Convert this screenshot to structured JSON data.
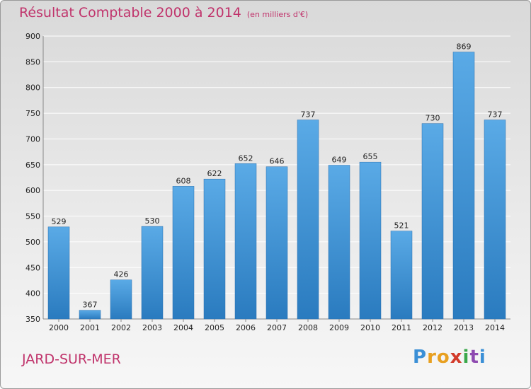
{
  "header": {
    "title": "Résultat Comptable 2000 à 2014",
    "subtitle": "(en milliers d'€)"
  },
  "footer": {
    "commune": "JARD-SUR-MER",
    "brand_letters": [
      "P",
      "r",
      "o",
      "x",
      "i",
      "t",
      "i"
    ],
    "brand_colors": [
      "#3a8fd6",
      "#e8a020",
      "#e8a020",
      "#d23a2a",
      "#3aa84a",
      "#8e4ab0",
      "#3a8fd6"
    ]
  },
  "colors": {
    "bar_top": "#5aaae6",
    "bar_bottom": "#2a7bbf",
    "grid": "#ffffff",
    "axis_text": "#222222",
    "title": "#c0336b"
  },
  "chart_data": {
    "type": "bar",
    "categories": [
      "2000",
      "2001",
      "2002",
      "2003",
      "2004",
      "2005",
      "2006",
      "2007",
      "2008",
      "2009",
      "2010",
      "2011",
      "2012",
      "2013",
      "2014"
    ],
    "values": [
      529,
      367,
      426,
      530,
      608,
      622,
      652,
      646,
      737,
      649,
      655,
      521,
      730,
      869,
      737
    ],
    "ylim": [
      350,
      900
    ],
    "yticks": [
      350,
      400,
      450,
      500,
      550,
      600,
      650,
      700,
      750,
      800,
      850,
      900
    ],
    "grid": true,
    "title": "Résultat Comptable 2000 à 2014",
    "subtitle": "(en milliers d'€)"
  }
}
